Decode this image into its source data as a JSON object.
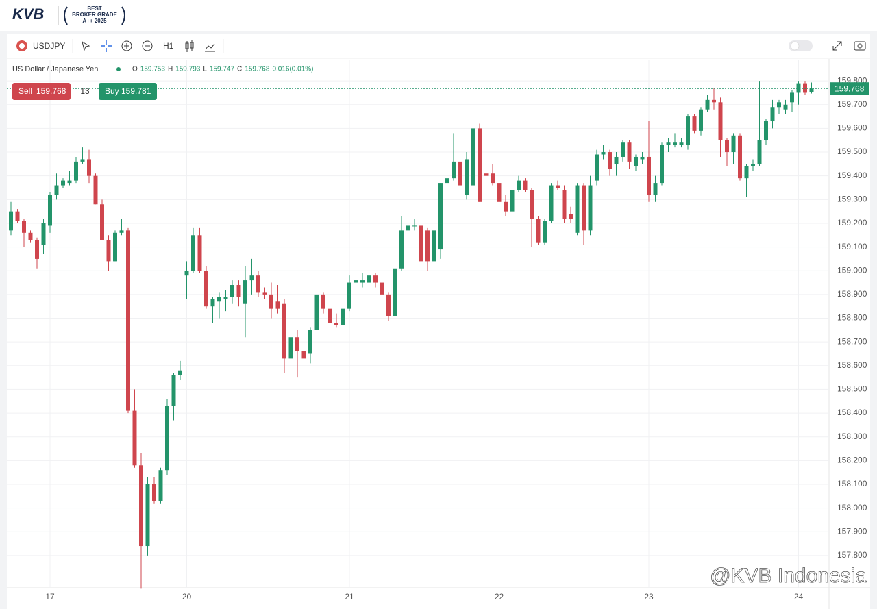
{
  "header": {
    "logo": "KVB",
    "badge": [
      "BEST",
      "BROKER GRADE",
      "A++ 2025"
    ]
  },
  "toolbar": {
    "symbol": "USDJPY",
    "timeframe": "H1"
  },
  "info": {
    "name": "US Dollar / Japanese Yen",
    "ohlc_letters": [
      "O",
      "H",
      "L",
      "C"
    ],
    "change": "0.016(0.01%)"
  },
  "trade": {
    "sell_label": "Sell",
    "sell_price": "159.768",
    "spread": "13",
    "buy_label": "Buy",
    "buy_price": "159.781"
  },
  "watermark": "@KVB Indonesia",
  "chart_data": {
    "type": "candlestick",
    "up_color": "#23946a",
    "down_color": "#cf454d",
    "grid": true,
    "last_price": 159.768,
    "ylim": [
      157.664,
      159.887
    ],
    "yticks": [
      {
        "value": 157.8,
        "label": "157.800"
      },
      {
        "value": 157.9,
        "label": "157.900"
      },
      {
        "value": 158.0,
        "label": "158.000"
      },
      {
        "value": 158.1,
        "label": "158.100"
      },
      {
        "value": 158.2,
        "label": "158.200"
      },
      {
        "value": 158.3,
        "label": "158.300"
      },
      {
        "value": 158.4,
        "label": "158.400"
      },
      {
        "value": 158.5,
        "label": "158.500"
      },
      {
        "value": 158.6,
        "label": "158.600"
      },
      {
        "value": 158.7,
        "label": "158.700"
      },
      {
        "value": 158.8,
        "label": "158.800"
      },
      {
        "value": 158.9,
        "label": "158.900"
      },
      {
        "value": 159.0,
        "label": "159.000"
      },
      {
        "value": 159.1,
        "label": "159.100"
      },
      {
        "value": 159.2,
        "label": "159.200"
      },
      {
        "value": 159.3,
        "label": "159.300"
      },
      {
        "value": 159.4,
        "label": "159.400"
      },
      {
        "value": 159.5,
        "label": "159.500"
      },
      {
        "value": 159.6,
        "label": "159.600"
      },
      {
        "value": 159.7,
        "label": "159.700"
      },
      {
        "value": 159.8,
        "label": "159.800"
      }
    ],
    "categories": [
      null,
      null,
      null,
      null,
      null,
      null,
      "17",
      null,
      null,
      null,
      null,
      null,
      null,
      null,
      null,
      null,
      null,
      null,
      null,
      null,
      null,
      null,
      null,
      null,
      null,
      null,
      null,
      "20",
      null,
      null,
      null,
      null,
      null,
      null,
      null,
      null,
      null,
      null,
      null,
      null,
      null,
      null,
      null,
      null,
      null,
      null,
      null,
      null,
      null,
      null,
      null,
      null,
      "21",
      null,
      null,
      null,
      null,
      null,
      null,
      null,
      null,
      null,
      null,
      null,
      null,
      null,
      null,
      null,
      null,
      null,
      null,
      null,
      null,
      null,
      null,
      "22",
      null,
      null,
      null,
      null,
      null,
      null,
      null,
      null,
      null,
      null,
      null,
      null,
      null,
      null,
      null,
      null,
      null,
      null,
      null,
      null,
      null,
      null,
      "23",
      null,
      null,
      null,
      null,
      null,
      null,
      null,
      null,
      null,
      null,
      null,
      null,
      null,
      null,
      null,
      null,
      null,
      null,
      null,
      null,
      null,
      null,
      "24",
      null,
      null
    ],
    "ohlc": [
      [
        159.17,
        159.29,
        159.15,
        159.25
      ],
      [
        159.25,
        159.26,
        159.2,
        159.21
      ],
      [
        159.21,
        159.22,
        159.1,
        159.16
      ],
      [
        159.16,
        159.17,
        159.12,
        159.13
      ],
      [
        159.13,
        159.14,
        159.01,
        159.05
      ],
      [
        159.11,
        159.22,
        159.07,
        159.2
      ],
      [
        159.19,
        159.33,
        159.16,
        159.32
      ],
      [
        159.32,
        159.41,
        159.3,
        159.36
      ],
      [
        159.36,
        159.39,
        159.35,
        159.38
      ],
      [
        159.37,
        159.42,
        159.36,
        159.38
      ],
      [
        159.38,
        159.48,
        159.37,
        159.46
      ],
      [
        159.46,
        159.52,
        159.45,
        159.47
      ],
      [
        159.47,
        159.51,
        159.37,
        159.4
      ],
      [
        159.4,
        159.41,
        159.28,
        159.28
      ],
      [
        159.28,
        159.3,
        159.13,
        159.13
      ],
      [
        159.13,
        159.15,
        159.0,
        159.04
      ],
      [
        159.04,
        159.17,
        159.04,
        159.16
      ],
      [
        159.16,
        159.22,
        159.15,
        159.17
      ],
      [
        159.17,
        159.18,
        158.4,
        158.41
      ],
      [
        158.41,
        158.5,
        158.17,
        158.18
      ],
      [
        158.18,
        158.23,
        157.66,
        157.84
      ],
      [
        157.84,
        158.13,
        157.8,
        158.1
      ],
      [
        158.1,
        158.13,
        158.02,
        158.03
      ],
      [
        158.03,
        158.17,
        158.02,
        158.16
      ],
      [
        158.16,
        158.46,
        158.14,
        158.43
      ],
      [
        158.43,
        158.57,
        158.37,
        158.56
      ],
      [
        158.56,
        158.62,
        158.54,
        158.58
      ],
      [
        158.98,
        159.04,
        158.88,
        159.0
      ],
      [
        159.0,
        159.18,
        158.99,
        159.15
      ],
      [
        159.15,
        159.18,
        158.99,
        159.0
      ],
      [
        159.0,
        159.02,
        158.84,
        158.85
      ],
      [
        158.85,
        158.89,
        158.78,
        158.88
      ],
      [
        158.87,
        158.91,
        158.8,
        158.89
      ],
      [
        158.88,
        158.92,
        158.83,
        158.89
      ],
      [
        158.89,
        158.96,
        158.86,
        158.94
      ],
      [
        158.94,
        158.96,
        158.85,
        158.89
      ],
      [
        158.86,
        159.02,
        158.72,
        158.96
      ],
      [
        158.96,
        159.05,
        158.9,
        158.98
      ],
      [
        158.98,
        159.0,
        158.89,
        158.91
      ],
      [
        158.91,
        158.93,
        158.88,
        158.9
      ],
      [
        158.9,
        158.95,
        158.8,
        158.84
      ],
      [
        158.87,
        158.94,
        158.82,
        158.84
      ],
      [
        158.86,
        158.88,
        158.57,
        158.63
      ],
      [
        158.63,
        158.78,
        158.61,
        158.72
      ],
      [
        158.72,
        158.75,
        158.55,
        158.66
      ],
      [
        158.66,
        158.68,
        158.6,
        158.63
      ],
      [
        158.65,
        158.76,
        158.61,
        158.75
      ],
      [
        158.75,
        158.91,
        158.74,
        158.9
      ],
      [
        158.9,
        158.91,
        158.82,
        158.84
      ],
      [
        158.84,
        158.87,
        158.77,
        158.78
      ],
      [
        158.78,
        158.82,
        158.76,
        158.77
      ],
      [
        158.77,
        158.85,
        158.75,
        158.84
      ],
      [
        158.84,
        158.98,
        158.83,
        158.95
      ],
      [
        158.95,
        158.98,
        158.93,
        158.96
      ],
      [
        158.95,
        158.99,
        158.93,
        158.96
      ],
      [
        158.95,
        158.99,
        158.94,
        158.98
      ],
      [
        158.98,
        158.99,
        158.93,
        158.95
      ],
      [
        158.95,
        158.96,
        158.88,
        158.9
      ],
      [
        158.9,
        158.91,
        158.79,
        158.81
      ],
      [
        158.81,
        159.01,
        158.8,
        159.01
      ],
      [
        159.01,
        159.23,
        159.0,
        159.17
      ],
      [
        159.17,
        159.25,
        159.1,
        159.19
      ],
      [
        159.19,
        159.22,
        159.17,
        159.19
      ],
      [
        159.19,
        159.2,
        159.02,
        159.04
      ],
      [
        159.17,
        159.18,
        159.0,
        159.04
      ],
      [
        159.04,
        159.17,
        159.02,
        159.17
      ],
      [
        159.09,
        159.37,
        159.05,
        159.37
      ],
      [
        159.37,
        159.42,
        159.3,
        159.39
      ],
      [
        159.39,
        159.58,
        159.38,
        159.46
      ],
      [
        159.46,
        159.47,
        159.2,
        159.36
      ],
      [
        159.32,
        159.5,
        159.3,
        159.47
      ],
      [
        159.36,
        159.63,
        159.25,
        159.6
      ],
      [
        159.6,
        159.62,
        159.29,
        159.29
      ],
      [
        159.41,
        159.45,
        159.38,
        159.4
      ],
      [
        159.41,
        159.45,
        159.36,
        159.37
      ],
      [
        159.37,
        159.38,
        159.18,
        159.29
      ],
      [
        159.29,
        159.32,
        159.23,
        159.25
      ],
      [
        159.25,
        159.35,
        159.24,
        159.34
      ],
      [
        159.34,
        159.4,
        159.33,
        159.38
      ],
      [
        159.38,
        159.39,
        159.33,
        159.34
      ],
      [
        159.34,
        159.35,
        159.1,
        159.22
      ],
      [
        159.22,
        159.23,
        159.11,
        159.12
      ],
      [
        159.12,
        159.22,
        159.11,
        159.21
      ],
      [
        159.21,
        159.37,
        159.2,
        159.36
      ],
      [
        159.36,
        159.38,
        159.34,
        159.35
      ],
      [
        159.34,
        159.36,
        159.2,
        159.22
      ],
      [
        159.24,
        159.27,
        159.2,
        159.22
      ],
      [
        159.16,
        159.37,
        159.15,
        159.36
      ],
      [
        159.36,
        159.37,
        159.11,
        159.17
      ],
      [
        159.17,
        159.4,
        159.15,
        159.36
      ],
      [
        159.38,
        159.51,
        159.36,
        159.49
      ],
      [
        159.49,
        159.53,
        159.47,
        159.5
      ],
      [
        159.5,
        159.51,
        159.4,
        159.43
      ],
      [
        159.45,
        159.5,
        159.4,
        159.48
      ],
      [
        159.48,
        159.55,
        159.46,
        159.54
      ],
      [
        159.54,
        159.55,
        159.43,
        159.46
      ],
      [
        159.44,
        159.49,
        159.42,
        159.48
      ],
      [
        159.47,
        159.5,
        159.45,
        159.48
      ],
      [
        159.48,
        159.63,
        159.29,
        159.32
      ],
      [
        159.32,
        159.4,
        159.29,
        159.37
      ],
      [
        159.37,
        159.54,
        159.36,
        159.53
      ],
      [
        159.53,
        159.56,
        159.5,
        159.54
      ],
      [
        159.53,
        159.58,
        159.52,
        159.54
      ],
      [
        159.53,
        159.56,
        159.52,
        159.54
      ],
      [
        159.53,
        159.66,
        159.51,
        159.65
      ],
      [
        159.65,
        159.66,
        159.58,
        159.59
      ],
      [
        159.59,
        159.69,
        159.57,
        159.68
      ],
      [
        159.68,
        159.74,
        159.67,
        159.72
      ],
      [
        159.72,
        159.77,
        159.68,
        159.71
      ],
      [
        159.71,
        159.73,
        159.48,
        159.55
      ],
      [
        159.55,
        159.56,
        159.44,
        159.5
      ],
      [
        159.5,
        159.58,
        159.45,
        159.57
      ],
      [
        159.57,
        159.58,
        159.38,
        159.39
      ],
      [
        159.39,
        159.45,
        159.31,
        159.44
      ],
      [
        159.44,
        159.47,
        159.42,
        159.45
      ],
      [
        159.45,
        159.8,
        159.44,
        159.55
      ],
      [
        159.55,
        159.64,
        159.53,
        159.63
      ],
      [
        159.63,
        159.72,
        159.6,
        159.69
      ],
      [
        159.69,
        159.72,
        159.66,
        159.71
      ],
      [
        159.68,
        159.72,
        159.66,
        159.7
      ],
      [
        159.71,
        159.76,
        159.67,
        159.75
      ],
      [
        159.75,
        159.8,
        159.7,
        159.79
      ],
      [
        159.79,
        159.8,
        159.74,
        159.75
      ],
      [
        159.753,
        159.793,
        159.747,
        159.768
      ]
    ]
  }
}
